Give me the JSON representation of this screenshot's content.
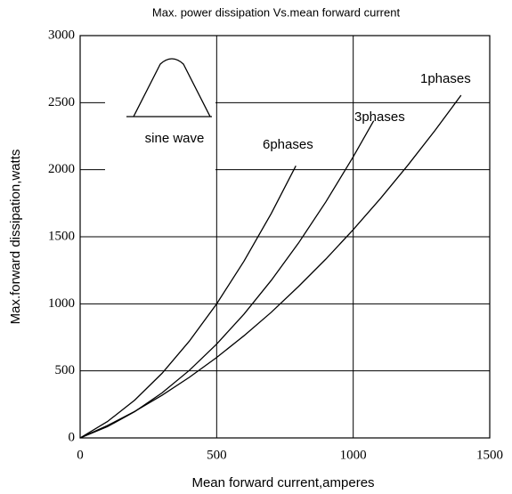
{
  "chart_data": {
    "type": "line",
    "title": "Max. power dissipation Vs.mean forward current",
    "xlabel": "Mean forward current,amperes",
    "ylabel": "Max.forward dissipation,watts",
    "inset_label": "sine wave",
    "xlim": [
      0,
      1500
    ],
    "xticks": [
      0,
      500,
      1000,
      1500
    ],
    "ylim": [
      0,
      3000
    ],
    "yticks": [
      0,
      500,
      1000,
      1500,
      2000,
      2500,
      3000
    ],
    "grid": true,
    "series": [
      {
        "name": "6phases",
        "color": "#000000",
        "x": [
          0,
          100,
          200,
          300,
          400,
          500,
          600,
          700,
          790
        ],
        "values": [
          0,
          122,
          282,
          482,
          722,
          1000,
          1318,
          1674,
          2029
        ]
      },
      {
        "name": "3phases",
        "color": "#000000",
        "x": [
          0,
          100,
          200,
          300,
          400,
          500,
          600,
          700,
          800,
          900,
          1000,
          1075
        ],
        "values": [
          0,
          84,
          196,
          336,
          504,
          700,
          923,
          1175,
          1454,
          1761,
          2096,
          2365
        ]
      },
      {
        "name": "1phases",
        "color": "#000000",
        "x": [
          0,
          100,
          200,
          300,
          400,
          500,
          600,
          700,
          800,
          900,
          1000,
          1100,
          1200,
          1300,
          1395
        ],
        "values": [
          0,
          92,
          198,
          318,
          452,
          600,
          762,
          937,
          1130,
          1334,
          1553,
          1786,
          2033,
          2294,
          2555
        ]
      }
    ]
  }
}
